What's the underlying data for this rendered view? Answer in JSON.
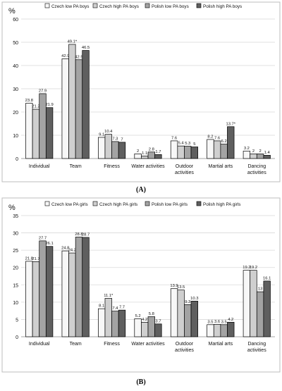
{
  "figure": {
    "panel_captions": [
      "(A)",
      "(B)"
    ]
  },
  "chart_data": [
    {
      "type": "bar",
      "unit_label": "%",
      "legend": [
        "Czech low PA boys",
        "Czech high PA boys",
        "Polish low PA boys",
        "Polish high PA boys"
      ],
      "categories": [
        "Individual",
        "Team",
        "Fitness",
        "Water activities",
        "Outdoor activities",
        "Martial arts",
        "Dancing activities"
      ],
      "ylim": [
        0,
        60
      ],
      "yticks": [
        0,
        10,
        20,
        30,
        40,
        50,
        60
      ],
      "series": [
        {
          "name": "Czech low PA boys",
          "values": [
            23.8,
            42.9,
            9.1,
            2,
            7.6,
            8.2,
            3.2
          ],
          "labels": [
            "23.8",
            "42.9",
            "9.1",
            "2",
            "7.6",
            "8.2",
            "3.2"
          ]
        },
        {
          "name": "Czech high PA boys",
          "values": [
            21.2,
            49.1,
            10.4,
            1.1,
            5.4,
            7.6,
            2
          ],
          "labels": [
            "21.2",
            "49.1*",
            "10.4",
            "1.1",
            "5.4",
            "7.6",
            "2"
          ]
        },
        {
          "name": "Polish low PA boys",
          "values": [
            27.9,
            42.5,
            7.3,
            2.8,
            5.3,
            6.2,
            2
          ],
          "labels": [
            "27.9",
            "42.5",
            "7.3",
            "2.8",
            "5.3",
            "6.2",
            "2"
          ]
        },
        {
          "name": "Polish high PA boys",
          "values": [
            21.9,
            46.5,
            7,
            1.7,
            5,
            13.7,
            1.4
          ],
          "labels": [
            "21.9",
            "46.5",
            "7",
            "1.7",
            "5",
            "13.7*",
            "1.4"
          ]
        }
      ],
      "grid": true,
      "legend_position": "top"
    },
    {
      "type": "bar",
      "unit_label": "%",
      "legend": [
        "Czech low PA girls",
        "Czech high PA girls",
        "Polish low PA girls",
        "Polish high PA girls"
      ],
      "categories": [
        "Individual",
        "Team",
        "Fitness",
        "Water activities",
        "Outdoor activities",
        "Martial arts",
        "Dancing activities"
      ],
      "ylim": [
        0,
        35
      ],
      "yticks": [
        0,
        5,
        10,
        15,
        20,
        25,
        30,
        35
      ],
      "series": [
        {
          "name": "Czech low PA girls",
          "values": [
            21.8,
            24.8,
            8.1,
            5.2,
            13.9,
            3.5,
            19.2
          ],
          "labels": [
            "21.8",
            "24.8",
            "8.1",
            "5.2",
            "13.9",
            "3.5",
            "19.2"
          ]
        },
        {
          "name": "Czech high PA girls",
          "values": [
            21.7,
            24.2,
            11.1,
            4.2,
            13.5,
            3.6,
            19.2
          ],
          "labels": [
            "21.7",
            "24.2",
            "11.1*",
            "4.2",
            "13.5",
            "3.6",
            "19.2"
          ]
        },
        {
          "name": "Polish low PA girls",
          "values": [
            27.7,
            28.8,
            7.4,
            5.8,
            9.3,
            3.5,
            13
          ],
          "labels": [
            "27.7",
            "28.8",
            "7.4",
            "5.8",
            "9.3",
            "3.5",
            "13"
          ]
        },
        {
          "name": "Polish high PA girls",
          "values": [
            26.1,
            28.7,
            7.7,
            3.7,
            10.3,
            4.2,
            16.1
          ],
          "labels": [
            "26.1",
            "28.7",
            "7.7",
            "3.7",
            "10.3",
            "4.2",
            "16.1"
          ]
        }
      ],
      "grid": true,
      "legend_position": "top"
    }
  ],
  "colors": {
    "series_fill": [
      "#f7f7f7",
      "#cfcfcf",
      "#a3a3a3",
      "#5f5f5f"
    ],
    "bar_stroke": "#000000",
    "grid": "#d9d9d9",
    "frame": "#bdbdbd",
    "text": "#111111"
  }
}
